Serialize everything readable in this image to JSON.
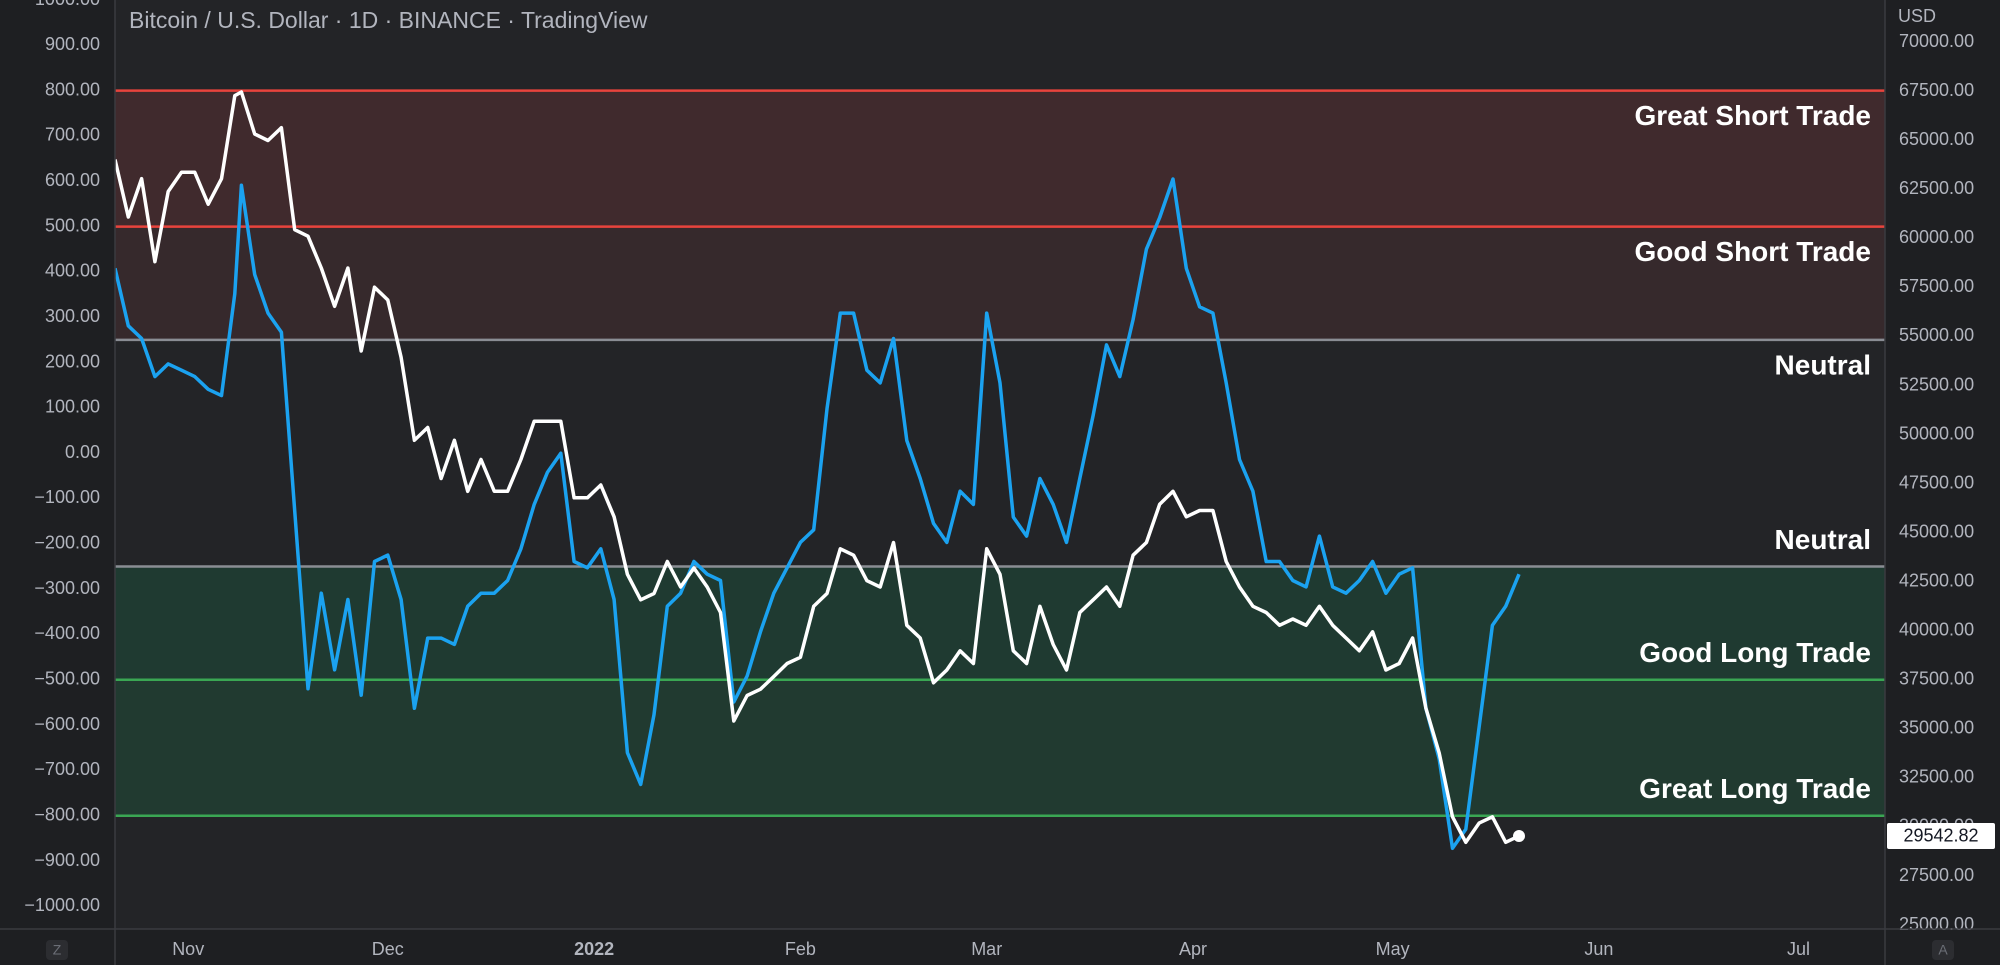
{
  "controls": {
    "left": "Z",
    "right": "A"
  },
  "chart_data": {
    "type": "line",
    "title": "Bitcoin / U.S. Dollar · 1D · BINANCE · TradingView",
    "y2label": "USD",
    "xlim": [
      0,
      266
    ],
    "xticks": [
      {
        "value": 11,
        "label": "Nov"
      },
      {
        "value": 41,
        "label": "Dec"
      },
      {
        "value": 72,
        "label": "2022"
      },
      {
        "value": 103,
        "label": "Feb"
      },
      {
        "value": 131,
        "label": "Mar"
      },
      {
        "value": 162,
        "label": "Apr"
      },
      {
        "value": 192,
        "label": "May"
      },
      {
        "value": 223,
        "label": "Jun"
      },
      {
        "value": 253,
        "label": "Jul"
      }
    ],
    "ylim": [
      -1050,
      1000
    ],
    "yticks": [
      {
        "value": 1000,
        "label": "1000.00"
      },
      {
        "value": 900,
        "label": "900.00"
      },
      {
        "value": 800,
        "label": "800.00"
      },
      {
        "value": 700,
        "label": "700.00"
      },
      {
        "value": 600,
        "label": "600.00"
      },
      {
        "value": 500,
        "label": "500.00"
      },
      {
        "value": 400,
        "label": "400.00"
      },
      {
        "value": 300,
        "label": "300.00"
      },
      {
        "value": 200,
        "label": "200.00"
      },
      {
        "value": 100,
        "label": "100.00"
      },
      {
        "value": 0,
        "label": "0.00"
      },
      {
        "value": -100,
        "label": "−100.00"
      },
      {
        "value": -200,
        "label": "−200.00"
      },
      {
        "value": -300,
        "label": "−300.00"
      },
      {
        "value": -400,
        "label": "−400.00"
      },
      {
        "value": -500,
        "label": "−500.00"
      },
      {
        "value": -600,
        "label": "−600.00"
      },
      {
        "value": -700,
        "label": "−700.00"
      },
      {
        "value": -800,
        "label": "−800.00"
      },
      {
        "value": -900,
        "label": "−900.00"
      },
      {
        "value": -1000,
        "label": "−1000.00"
      }
    ],
    "y2lim": [
      24800,
      72150
    ],
    "y2ticks": [
      {
        "value": 70000,
        "label": "70000.00"
      },
      {
        "value": 67500,
        "label": "67500.00"
      },
      {
        "value": 65000,
        "label": "65000.00"
      },
      {
        "value": 62500,
        "label": "62500.00"
      },
      {
        "value": 60000,
        "label": "60000.00"
      },
      {
        "value": 57500,
        "label": "57500.00"
      },
      {
        "value": 55000,
        "label": "55000.00"
      },
      {
        "value": 52500,
        "label": "52500.00"
      },
      {
        "value": 50000,
        "label": "50000.00"
      },
      {
        "value": 47500,
        "label": "47500.00"
      },
      {
        "value": 45000,
        "label": "45000.00"
      },
      {
        "value": 42500,
        "label": "42500.00"
      },
      {
        "value": 40000,
        "label": "40000.00"
      },
      {
        "value": 37500,
        "label": "37500.00"
      },
      {
        "value": 35000,
        "label": "35000.00"
      },
      {
        "value": 32500,
        "label": "32500.00"
      },
      {
        "value": 30000,
        "label": "30000.00"
      },
      {
        "value": 27500,
        "label": "27500.00"
      },
      {
        "value": 25000,
        "label": "25000.00"
      }
    ],
    "levels": [
      {
        "value": 800,
        "label": "Great Short Trade",
        "color": "#e8433d",
        "fill": "#402a2d"
      },
      {
        "value": 500,
        "label": "Good Short Trade",
        "color": "#e8433d",
        "fill": "#36292c"
      },
      {
        "value": 250,
        "label": "Neutral",
        "color": "#8a8d94"
      },
      {
        "value": -250,
        "label": "Neutral",
        "color": "#8a8d94"
      },
      {
        "value": -500,
        "label": "Good Long Trade",
        "color": "#3aa653",
        "fill": "#1f3a31"
      },
      {
        "value": -800,
        "label": "Great Long Trade",
        "color": "#3aa653",
        "fill": "#213a30"
      }
    ],
    "x": [
      0,
      2,
      4,
      6,
      8,
      10,
      12,
      14,
      16,
      18,
      19,
      21,
      23,
      25,
      27,
      29,
      31,
      33,
      35,
      37,
      39,
      41,
      43,
      45,
      47,
      49,
      51,
      53,
      55,
      57,
      59,
      61,
      63,
      65,
      67,
      69,
      71,
      73,
      75,
      77,
      79,
      81,
      83,
      85,
      87,
      89,
      91,
      93,
      95,
      97,
      99,
      101,
      103,
      105,
      107,
      109,
      111,
      113,
      115,
      117,
      119,
      121,
      123,
      125,
      127,
      129,
      131,
      133,
      135,
      137,
      139,
      141,
      143,
      145,
      147,
      149,
      151,
      153,
      155,
      157,
      159,
      161,
      163,
      165,
      167,
      169,
      171,
      173,
      175,
      177,
      179,
      181,
      183,
      185,
      187,
      189,
      191,
      193,
      195,
      197,
      199,
      201,
      203,
      205,
      207,
      209,
      211
    ],
    "series": [
      {
        "color": "#ffffff",
        "axis": "y2",
        "values": [
          64020,
          61090,
          63040,
          58810,
          62390,
          63370,
          63370,
          61740,
          63040,
          67270,
          67460,
          65320,
          64990,
          65640,
          60440,
          60110,
          58490,
          56540,
          58490,
          54260,
          57510,
          56860,
          53940,
          49710,
          50360,
          47760,
          49710,
          47110,
          48730,
          47110,
          47110,
          48730,
          50680,
          50680,
          50680,
          46780,
          46780,
          47430,
          45810,
          42880,
          41580,
          41900,
          43530,
          42230,
          43200,
          42230,
          40930,
          35400,
          36700,
          37020,
          37670,
          38330,
          38650,
          41250,
          41900,
          44180,
          43850,
          42550,
          42230,
          44500,
          40280,
          39630,
          37350,
          38000,
          38980,
          38330,
          44180,
          42880,
          38980,
          38330,
          41250,
          39300,
          38000,
          40930,
          41580,
          42230,
          41250,
          43850,
          44500,
          46450,
          47110,
          45810,
          46130,
          46130,
          43530,
          42230,
          41250,
          40930,
          40280,
          40600,
          40280,
          41250,
          40280,
          39630,
          38980,
          39950,
          38000,
          38330,
          39630,
          36050,
          33770,
          30520,
          29220,
          30200,
          30520,
          29220,
          29542.82
        ]
      },
      {
        "color": "#1ba2f0",
        "values": [
          408,
          281,
          253,
          169,
          197,
          183,
          169,
          141,
          127,
          352,
          591,
          394,
          309,
          267,
          -127,
          -520,
          -309,
          -478,
          -323,
          -534,
          -239,
          -225,
          -323,
          -563,
          -408,
          -408,
          -422,
          -338,
          -309,
          -309,
          -281,
          -211,
          -113,
          -42,
          0,
          -239,
          -253,
          -211,
          -323,
          -661,
          -731,
          -577,
          -338,
          -309,
          -239,
          -267,
          -281,
          -549,
          -492,
          -394,
          -309,
          -253,
          -197,
          -169,
          98,
          309,
          309,
          183,
          155,
          253,
          28,
          -56,
          -155,
          -197,
          -84,
          -113,
          309,
          155,
          -141,
          -183,
          -56,
          -113,
          -197,
          -56,
          84,
          239,
          169,
          295,
          450,
          520,
          605,
          408,
          323,
          309,
          155,
          -14,
          -84,
          -239,
          -239,
          -281,
          -295,
          -183,
          -295,
          -309,
          -281,
          -239,
          -309,
          -267,
          -253,
          -563,
          -675,
          -872,
          -830,
          -605,
          -380,
          -338,
          -267
        ]
      }
    ]
  }
}
